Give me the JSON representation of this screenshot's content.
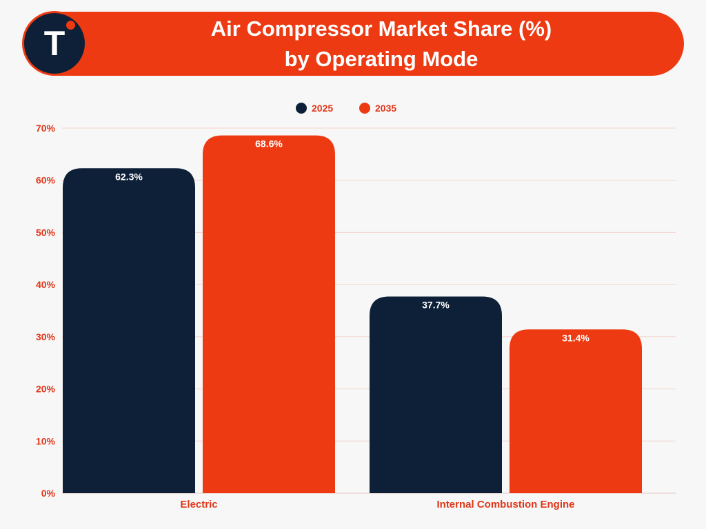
{
  "header": {
    "logo_letter": "T",
    "title_line1": "Air Compressor Market Share (%)",
    "title_line2": "by Operating Mode"
  },
  "colors": {
    "banner": "#ee3a12",
    "series_2025": "#0d2037",
    "series_2035": "#ee3a12",
    "axis_text": "#e0361a",
    "grid": "#f4d4cc"
  },
  "chart_data": {
    "type": "bar",
    "categories": [
      "Electric",
      "Internal Combustion Engine"
    ],
    "series": [
      {
        "name": "2025",
        "values": [
          62.3,
          37.7
        ],
        "labels": [
          "62.3%",
          "37.7%"
        ]
      },
      {
        "name": "2035",
        "values": [
          68.6,
          31.4
        ],
        "labels": [
          "68.6%",
          "31.4%"
        ]
      }
    ],
    "yticks": [
      "0%",
      "10%",
      "20%",
      "30%",
      "40%",
      "50%",
      "60%",
      "70%"
    ],
    "ylim": [
      0,
      70
    ],
    "grid": true,
    "legend": "top-center"
  }
}
